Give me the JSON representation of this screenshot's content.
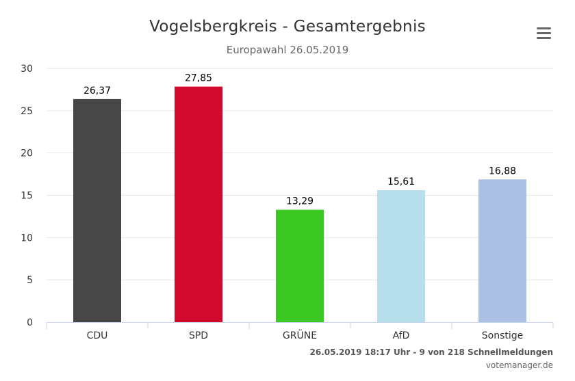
{
  "chart_data": {
    "type": "bar",
    "title": "Vogelsbergkreis - Gesamtergebnis",
    "subtitle": "Europawahl 26.05.2019",
    "categories": [
      "CDU",
      "SPD",
      "GRÜNE",
      "AfD",
      "Sonstige"
    ],
    "values": [
      26.37,
      27.85,
      13.29,
      15.61,
      16.88
    ],
    "data_labels": [
      "26,37",
      "27,85",
      "13,29",
      "15,61",
      "16,88"
    ],
    "colors": [
      "#474747",
      "#d20a2e",
      "#3bc823",
      "#b6dfeb",
      "#abc0e2"
    ],
    "ylim": [
      0,
      30
    ],
    "yticks": [
      0,
      5,
      10,
      15,
      20,
      25,
      30
    ],
    "grid": true,
    "legend": "none"
  },
  "credits": {
    "main": "26.05.2019 18:17 Uhr - 9 von 218 Schnellmeldungen",
    "site": "votemanager.de"
  },
  "menu": {
    "icon": "hamburger-menu-icon"
  }
}
